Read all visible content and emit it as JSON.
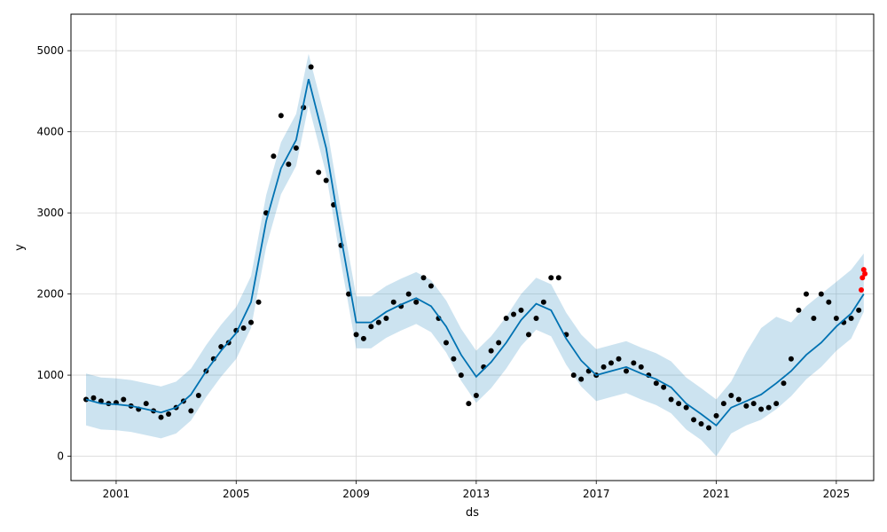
{
  "chart_data": {
    "type": "line",
    "title": "",
    "xlabel": "ds",
    "ylabel": "y",
    "x_range": [
      "1999-07-01",
      "2026-04-01"
    ],
    "ylim": [
      -300,
      5450
    ],
    "grid": true,
    "x_ticks": [
      {
        "date": "2001-01-01",
        "label": "2001"
      },
      {
        "date": "2005-01-01",
        "label": "2005"
      },
      {
        "date": "2009-01-01",
        "label": "2009"
      },
      {
        "date": "2013-01-01",
        "label": "2013"
      },
      {
        "date": "2017-01-01",
        "label": "2017"
      },
      {
        "date": "2021-01-01",
        "label": "2021"
      },
      {
        "date": "2025-01-01",
        "label": "2025"
      }
    ],
    "y_ticks": [
      0,
      1000,
      2000,
      3000,
      4000,
      5000
    ],
    "colors": {
      "forecast_line": "#0072b2",
      "uncertainty_band": "#0072b2",
      "observed_points": "#000000",
      "recent_points": "#ff0000",
      "grid": "#d9d9d9"
    },
    "series": [
      {
        "role": "forecast",
        "x": [
          "2000-01-01",
          "2000-07-01",
          "2001-01-01",
          "2001-07-01",
          "2002-01-01",
          "2002-07-01",
          "2003-01-01",
          "2003-07-01",
          "2004-01-01",
          "2004-07-01",
          "2005-01-01",
          "2005-07-01",
          "2006-01-01",
          "2006-07-01",
          "2007-01-01",
          "2007-06-01",
          "2008-01-01",
          "2008-07-01",
          "2009-01-01",
          "2009-07-01",
          "2010-01-01",
          "2010-07-01",
          "2011-01-01",
          "2011-07-01",
          "2012-01-01",
          "2012-07-01",
          "2013-01-01",
          "2013-07-01",
          "2014-01-01",
          "2014-07-01",
          "2015-01-01",
          "2015-07-01",
          "2016-01-01",
          "2016-07-01",
          "2017-01-01",
          "2017-07-01",
          "2018-01-01",
          "2018-07-01",
          "2019-01-01",
          "2019-07-01",
          "2020-01-01",
          "2020-07-01",
          "2021-01-01",
          "2021-07-01",
          "2022-01-01",
          "2022-07-01",
          "2023-01-01",
          "2023-07-01",
          "2024-01-01",
          "2024-07-01",
          "2025-01-01",
          "2025-07-01",
          "2025-12-01"
        ],
        "y": [
          700,
          650,
          640,
          620,
          580,
          540,
          600,
          760,
          1050,
          1300,
          1520,
          1900,
          2900,
          3550,
          3900,
          4650,
          3800,
          2700,
          1650,
          1650,
          1780,
          1870,
          1950,
          1850,
          1600,
          1250,
          980,
          1160,
          1400,
          1680,
          1880,
          1800,
          1450,
          1180,
          1000,
          1050,
          1100,
          1020,
          950,
          850,
          650,
          520,
          380,
          600,
          680,
          760,
          900,
          1050,
          1250,
          1400,
          1600,
          1760,
          2000
        ]
      },
      {
        "role": "uncertainty_upper",
        "x": [
          "2000-01-01",
          "2000-07-01",
          "2001-01-01",
          "2001-07-01",
          "2002-01-01",
          "2002-07-01",
          "2003-01-01",
          "2003-07-01",
          "2004-01-01",
          "2004-07-01",
          "2005-01-01",
          "2005-07-01",
          "2006-01-01",
          "2006-07-01",
          "2007-01-01",
          "2007-06-01",
          "2008-01-01",
          "2008-07-01",
          "2009-01-01",
          "2009-07-01",
          "2010-01-01",
          "2010-07-01",
          "2011-01-01",
          "2011-07-01",
          "2012-01-01",
          "2012-07-01",
          "2013-01-01",
          "2013-07-01",
          "2014-01-01",
          "2014-07-01",
          "2015-01-01",
          "2015-07-01",
          "2016-01-01",
          "2016-07-01",
          "2017-01-01",
          "2017-07-01",
          "2018-01-01",
          "2018-07-01",
          "2019-01-01",
          "2019-07-01",
          "2020-01-01",
          "2020-07-01",
          "2021-01-01",
          "2021-07-01",
          "2022-01-01",
          "2022-07-01",
          "2023-01-01",
          "2023-07-01",
          "2024-01-01",
          "2024-07-01",
          "2025-01-01",
          "2025-07-01",
          "2025-12-01"
        ],
        "y": [
          1020,
          970,
          960,
          940,
          900,
          860,
          920,
          1080,
          1370,
          1620,
          1840,
          2220,
          3220,
          3870,
          4220,
          4960,
          4120,
          3020,
          1970,
          1970,
          2100,
          2190,
          2270,
          2170,
          1920,
          1570,
          1300,
          1480,
          1720,
          2000,
          2200,
          2120,
          1770,
          1500,
          1320,
          1370,
          1420,
          1340,
          1270,
          1170,
          970,
          840,
          700,
          920,
          1280,
          1580,
          1720,
          1650,
          1850,
          2000,
          2150,
          2300,
          2500
        ]
      },
      {
        "role": "uncertainty_lower",
        "x": [
          "2000-01-01",
          "2000-07-01",
          "2001-01-01",
          "2001-07-01",
          "2002-01-01",
          "2002-07-01",
          "2003-01-01",
          "2003-07-01",
          "2004-01-01",
          "2004-07-01",
          "2005-01-01",
          "2005-07-01",
          "2006-01-01",
          "2006-07-01",
          "2007-01-01",
          "2007-06-01",
          "2008-01-01",
          "2008-07-01",
          "2009-01-01",
          "2009-07-01",
          "2010-01-01",
          "2010-07-01",
          "2011-01-01",
          "2011-07-01",
          "2012-01-01",
          "2012-07-01",
          "2013-01-01",
          "2013-07-01",
          "2014-01-01",
          "2014-07-01",
          "2015-01-01",
          "2015-07-01",
          "2016-01-01",
          "2016-07-01",
          "2017-01-01",
          "2017-07-01",
          "2018-01-01",
          "2018-07-01",
          "2019-01-01",
          "2019-07-01",
          "2020-01-01",
          "2020-07-01",
          "2021-01-01",
          "2021-07-01",
          "2022-01-01",
          "2022-07-01",
          "2023-01-01",
          "2023-07-01",
          "2024-01-01",
          "2024-07-01",
          "2025-01-01",
          "2025-07-01",
          "2025-12-01"
        ],
        "y": [
          380,
          330,
          320,
          300,
          260,
          220,
          280,
          440,
          730,
          980,
          1200,
          1580,
          2580,
          3230,
          3580,
          4330,
          3480,
          2380,
          1330,
          1330,
          1460,
          1550,
          1630,
          1530,
          1280,
          930,
          660,
          840,
          1080,
          1360,
          1560,
          1480,
          1130,
          860,
          680,
          730,
          780,
          700,
          630,
          530,
          330,
          200,
          0,
          280,
          380,
          450,
          580,
          740,
          950,
          1100,
          1300,
          1450,
          1780
        ]
      },
      {
        "role": "observed",
        "x": [
          "2000-01-01",
          "2000-04-01",
          "2000-07-01",
          "2000-10-01",
          "2001-01-01",
          "2001-04-01",
          "2001-07-01",
          "2001-10-01",
          "2002-01-01",
          "2002-04-01",
          "2002-07-01",
          "2002-10-01",
          "2003-01-01",
          "2003-04-01",
          "2003-07-01",
          "2003-10-01",
          "2004-01-01",
          "2004-04-01",
          "2004-07-01",
          "2004-10-01",
          "2005-01-01",
          "2005-04-01",
          "2005-07-01",
          "2005-10-01",
          "2006-01-01",
          "2006-04-01",
          "2006-07-01",
          "2006-10-01",
          "2007-01-01",
          "2007-04-01",
          "2007-07-01",
          "2007-10-01",
          "2008-01-01",
          "2008-04-01",
          "2008-07-01",
          "2008-10-01",
          "2009-01-01",
          "2009-04-01",
          "2009-07-01",
          "2009-10-01",
          "2010-01-01",
          "2010-04-01",
          "2010-07-01",
          "2010-10-01",
          "2011-01-01",
          "2011-04-01",
          "2011-07-01",
          "2011-10-01",
          "2012-01-01",
          "2012-04-01",
          "2012-07-01",
          "2012-10-01",
          "2013-01-01",
          "2013-04-01",
          "2013-07-01",
          "2013-10-01",
          "2014-01-01",
          "2014-04-01",
          "2014-07-01",
          "2014-10-01",
          "2015-01-01",
          "2015-04-01",
          "2015-07-01",
          "2015-10-01",
          "2016-01-01",
          "2016-04-01",
          "2016-07-01",
          "2016-10-01",
          "2017-01-01",
          "2017-04-01",
          "2017-07-01",
          "2017-10-01",
          "2018-01-01",
          "2018-04-01",
          "2018-07-01",
          "2018-10-01",
          "2019-01-01",
          "2019-04-01",
          "2019-07-01",
          "2019-10-01",
          "2020-01-01",
          "2020-04-01",
          "2020-07-01",
          "2020-10-01",
          "2021-01-01",
          "2021-04-01",
          "2021-07-01",
          "2021-10-01",
          "2022-01-01",
          "2022-04-01",
          "2022-07-01",
          "2022-10-01",
          "2023-01-01",
          "2023-04-01",
          "2023-07-01",
          "2023-10-01",
          "2024-01-01",
          "2024-04-01",
          "2024-07-01",
          "2024-10-01",
          "2025-01-01",
          "2025-04-01",
          "2025-07-01",
          "2025-10-01"
        ],
        "y": [
          700,
          720,
          680,
          650,
          660,
          700,
          620,
          580,
          650,
          560,
          480,
          520,
          600,
          680,
          560,
          750,
          1050,
          1200,
          1350,
          1400,
          1550,
          1580,
          1650,
          1900,
          3000,
          3700,
          4200,
          3600,
          3800,
          4300,
          4800,
          3500,
          3400,
          3100,
          2600,
          2000,
          1500,
          1450,
          1600,
          1650,
          1700,
          1900,
          1850,
          2000,
          1900,
          2200,
          2100,
          1700,
          1400,
          1200,
          1000,
          650,
          750,
          1100,
          1300,
          1400,
          1700,
          1750,
          1800,
          1500,
          1700,
          1900,
          2200,
          2200,
          1500,
          1000,
          950,
          1050,
          1000,
          1100,
          1150,
          1200,
          1050,
          1150,
          1100,
          1000,
          900,
          850,
          700,
          650,
          600,
          450,
          400,
          350,
          500,
          650,
          750,
          700,
          620,
          650,
          580,
          600,
          650,
          900,
          1200,
          1800,
          2000,
          1700,
          2000,
          1900,
          1700,
          1650,
          1700,
          1800
        ]
      },
      {
        "role": "recent",
        "x": [
          "2025-11-01",
          "2025-11-15",
          "2025-12-01",
          "2025-12-15"
        ],
        "y": [
          2050,
          2200,
          2300,
          2250
        ]
      }
    ]
  }
}
